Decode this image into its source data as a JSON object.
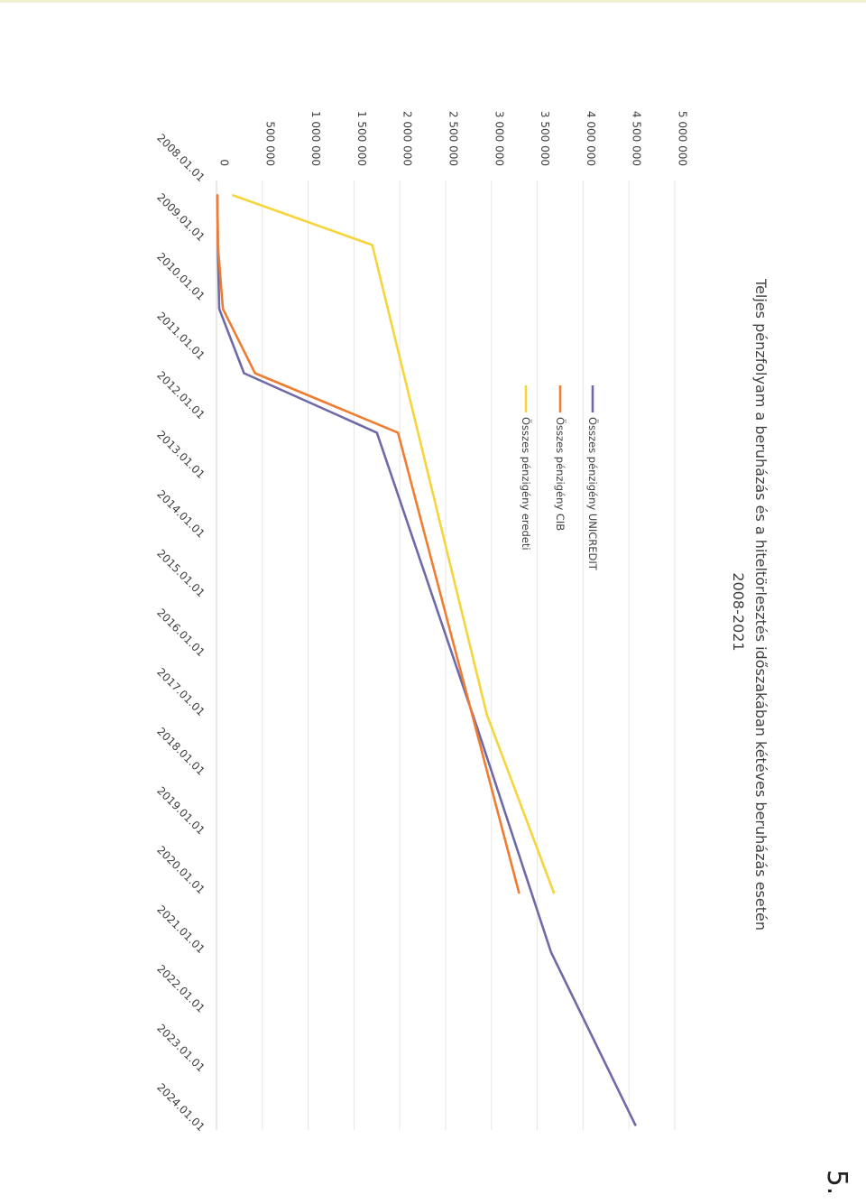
{
  "page_number": "5.",
  "colors": {
    "unicredit": "#6e6aa8",
    "cib": "#ef7d31",
    "eredeti": "#f6d53c",
    "grid": "#e6e6e6",
    "text": "#404040"
  },
  "chart_data": {
    "type": "line",
    "orientation": "rotated 90° clockwise on page",
    "title": "Teljes pénzfolyam a beruházás és a hiteltörlesztés időszakában kétéves beruházás esetén",
    "subtitle": "2008-2021",
    "xlabel": "",
    "ylabel": "",
    "y_tick_labels": [
      "0",
      "500 000",
      "1 000 000",
      "1 500 000",
      "2 000 000",
      "2 500 000",
      "3 000 000",
      "3 500 000",
      "4 000 000",
      "4 500 000",
      "5 000 000"
    ],
    "ylim": [
      0,
      5000000
    ],
    "x_tick_labels": [
      "2008.01.01",
      "2009.01.01",
      "2010.01.01",
      "2011.01.01",
      "2012.01.01",
      "2013.01.01",
      "2014.01.01",
      "2015.01.01",
      "2016.01.01",
      "2017.01.01",
      "2018.01.01",
      "2019.01.01",
      "2020.01.01",
      "2021.01.01",
      "2022.01.01",
      "2023.01.01",
      "2024.01.01"
    ],
    "xlim": [
      "2008.01.01",
      "2024.01.01"
    ],
    "grid": true,
    "legend_position": "top",
    "series": [
      {
        "name": "Összes pénzigény UNICREDIT",
        "color": "#6e6aa8",
        "points": [
          {
            "x": "2008.04.01",
            "y": 10000
          },
          {
            "x": "2009.02.01",
            "y": 15000
          },
          {
            "x": "2010.03.01",
            "y": 30000
          },
          {
            "x": "2011.04.01",
            "y": 300000
          },
          {
            "x": "2012.04.01",
            "y": 1750000
          },
          {
            "x": "2017.04.01",
            "y": 2850000
          },
          {
            "x": "2021.01.01",
            "y": 3650000
          },
          {
            "x": "2023.12.01",
            "y": 4570000
          }
        ]
      },
      {
        "name": "Összes pénzigény CIB",
        "color": "#ef7d31",
        "points": [
          {
            "x": "2008.04.01",
            "y": 10000
          },
          {
            "x": "2009.02.01",
            "y": 15000
          },
          {
            "x": "2010.03.01",
            "y": 70000
          },
          {
            "x": "2011.04.01",
            "y": 420000
          },
          {
            "x": "2012.04.01",
            "y": 1980000
          },
          {
            "x": "2020.01.01",
            "y": 3300000
          }
        ]
      },
      {
        "name": "Összes pénzigény eredeti",
        "color": "#f6d53c",
        "points": [
          {
            "x": "2008.04.01",
            "y": 180000
          },
          {
            "x": "2009.02.01",
            "y": 1700000
          },
          {
            "x": "2017.01.01",
            "y": 2950000
          },
          {
            "x": "2020.01.01",
            "y": 3680000
          }
        ]
      }
    ]
  }
}
